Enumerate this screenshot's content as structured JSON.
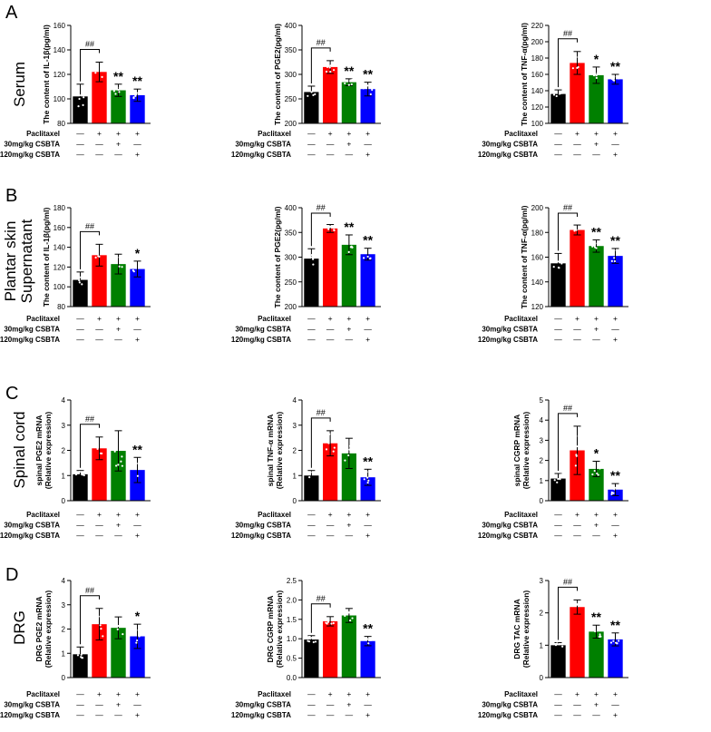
{
  "panels": [
    {
      "letter": "A",
      "row_label": [
        "Serum"
      ]
    },
    {
      "letter": "B",
      "row_label": [
        "Plantar skin",
        "Supernatant"
      ]
    },
    {
      "letter": "C",
      "row_label": [
        "Spinal cord"
      ]
    },
    {
      "letter": "D",
      "row_label": [
        "DRG"
      ]
    }
  ],
  "colors": {
    "control": "#000000",
    "paclitaxel": "#ff0000",
    "low_dose": "#008000",
    "high_dose": "#0000ff"
  },
  "treatment_rows": {
    "row1": "Paclitaxel",
    "row2": "30mg/kg CSBTA",
    "row3": "120mg/kg CSBTA",
    "grid": [
      [
        "—",
        "+",
        "+",
        "+"
      ],
      [
        "—",
        "—",
        "+",
        "—"
      ],
      [
        "—",
        "—",
        "—",
        "+"
      ]
    ]
  },
  "chart_data": [
    {
      "type": "bar",
      "panel": "A",
      "ylabel": [
        "The content of IL-1β(pg/ml)"
      ],
      "ylim": [
        80,
        160
      ],
      "ticks": [
        "80",
        "100",
        "120",
        "140",
        "160"
      ],
      "categories": [
        "Control",
        "Paclitaxel",
        "Paclitaxel + 30mg/kg CSBTA",
        "Paclitaxel + 120mg/kg CSBTA"
      ],
      "values": [
        102,
        122,
        107,
        103
      ],
      "errors": [
        10,
        8,
        5,
        5
      ],
      "hash_label": "##",
      "marks": [
        "",
        "",
        "**",
        "**"
      ]
    },
    {
      "type": "bar",
      "panel": "A",
      "ylabel": [
        "The content of PGE2(pg/ml)"
      ],
      "ylim": [
        200,
        400
      ],
      "ticks": [
        "200",
        "250",
        "300",
        "350",
        "400"
      ],
      "categories": [
        "Control",
        "Paclitaxel",
        "Paclitaxel + 30mg/kg CSBTA",
        "Paclitaxel + 120mg/kg CSBTA"
      ],
      "values": [
        264,
        315,
        284,
        270
      ],
      "errors": [
        12,
        13,
        7,
        14
      ],
      "hash_label": "##",
      "marks": [
        "",
        "",
        "**",
        "**"
      ]
    },
    {
      "type": "bar",
      "panel": "A",
      "ylabel": [
        "The content of TNF-α(pg/ml)"
      ],
      "ylim": [
        100,
        220
      ],
      "ticks": [
        "100",
        "120",
        "140",
        "160",
        "180",
        "200",
        "220"
      ],
      "categories": [
        "Control",
        "Paclitaxel",
        "Paclitaxel + 30mg/kg CSBTA",
        "Paclitaxel + 120mg/kg CSBTA"
      ],
      "values": [
        136,
        174,
        159,
        154
      ],
      "errors": [
        5,
        14,
        10,
        6
      ],
      "hash_label": "##",
      "marks": [
        "",
        "",
        "*",
        "**"
      ]
    },
    {
      "type": "bar",
      "panel": "B",
      "ylabel": [
        "The content of IL-1β(pg/ml)"
      ],
      "ylim": [
        80,
        180
      ],
      "ticks": [
        "80",
        "100",
        "120",
        "140",
        "160",
        "180"
      ],
      "categories": [
        "Control",
        "Paclitaxel",
        "Paclitaxel + 30mg/kg CSBTA",
        "Paclitaxel + 120mg/kg CSBTA"
      ],
      "values": [
        107,
        132,
        123,
        118
      ],
      "errors": [
        8,
        11,
        10,
        8
      ],
      "hash_label": "##",
      "marks": [
        "",
        "",
        "",
        "*"
      ]
    },
    {
      "type": "bar",
      "panel": "B",
      "ylabel": [
        "The content of PGE2(pg/ml)"
      ],
      "ylim": [
        200,
        400
      ],
      "ticks": [
        "200",
        "250",
        "300",
        "350",
        "400"
      ],
      "categories": [
        "Control",
        "Paclitaxel",
        "Paclitaxel + 30mg/kg CSBTA",
        "Paclitaxel + 120mg/kg CSBTA"
      ],
      "values": [
        297,
        358,
        325,
        306
      ],
      "errors": [
        20,
        8,
        20,
        12
      ],
      "hash_label": "##",
      "marks": [
        "",
        "",
        "**",
        "**"
      ]
    },
    {
      "type": "bar",
      "panel": "B",
      "ylabel": [
        "The content of TNF-α(pg/ml)"
      ],
      "ylim": [
        120,
        200
      ],
      "ticks": [
        "120",
        "140",
        "160",
        "180",
        "200"
      ],
      "categories": [
        "Control",
        "Paclitaxel",
        "Paclitaxel + 30mg/kg CSBTA",
        "Paclitaxel + 120mg/kg CSBTA"
      ],
      "values": [
        155,
        182,
        169,
        161
      ],
      "errors": [
        8,
        4,
        5,
        6
      ],
      "hash_label": "##",
      "marks": [
        "",
        "",
        "**",
        "**"
      ]
    },
    {
      "type": "bar",
      "panel": "C",
      "ylabel": [
        "spinal PGE2 mRNA",
        "(Relative expression)"
      ],
      "ylim": [
        0,
        4
      ],
      "ticks": [
        "0",
        "1",
        "2",
        "3",
        "4"
      ],
      "categories": [
        "Control",
        "Paclitaxel",
        "Paclitaxel + 30mg/kg CSBTA",
        "Paclitaxel + 120mg/kg CSBTA"
      ],
      "values": [
        1.05,
        2.08,
        1.98,
        1.22
      ],
      "errors": [
        0.15,
        0.45,
        0.8,
        0.5
      ],
      "hash_label": "##",
      "marks": [
        "",
        "",
        "",
        "**"
      ]
    },
    {
      "type": "bar",
      "panel": "C",
      "ylabel": [
        "spinal TNF-α mRNA",
        "(Relative expression)"
      ],
      "ylim": [
        0,
        4
      ],
      "ticks": [
        "0",
        "1",
        "2",
        "3",
        "4"
      ],
      "categories": [
        "Control",
        "Paclitaxel",
        "Paclitaxel + 30mg/kg CSBTA",
        "Paclitaxel + 120mg/kg CSBTA"
      ],
      "values": [
        1.0,
        2.28,
        1.88,
        0.93
      ],
      "errors": [
        0.2,
        0.5,
        0.6,
        0.32
      ],
      "hash_label": "##",
      "marks": [
        "",
        "",
        "",
        "**"
      ]
    },
    {
      "type": "bar",
      "panel": "C",
      "ylabel": [
        "spinal CGRP mRNA",
        "(Relative expression)"
      ],
      "ylim": [
        0,
        5
      ],
      "ticks": [
        "0",
        "1",
        "2",
        "3",
        "4",
        "5"
      ],
      "categories": [
        "Control",
        "Paclitaxel",
        "Paclitaxel + 30mg/kg CSBTA",
        "Paclitaxel + 120mg/kg CSBTA"
      ],
      "values": [
        1.1,
        2.5,
        1.58,
        0.55
      ],
      "errors": [
        0.25,
        1.2,
        0.38,
        0.3
      ],
      "hash_label": "##",
      "marks": [
        "",
        "",
        "*",
        "**"
      ]
    },
    {
      "type": "bar",
      "panel": "D",
      "ylabel": [
        "DRG PGE2 mRNA",
        "(Relative expression)"
      ],
      "ylim": [
        0,
        4
      ],
      "ticks": [
        "0",
        "1",
        "2",
        "3",
        "4"
      ],
      "categories": [
        "Control",
        "Paclitaxel",
        "Paclitaxel + 30mg/kg CSBTA",
        "Paclitaxel + 120mg/kg CSBTA"
      ],
      "values": [
        0.96,
        2.2,
        2.05,
        1.7
      ],
      "errors": [
        0.3,
        0.65,
        0.45,
        0.5
      ],
      "hash_label": "##",
      "marks": [
        "",
        "",
        "",
        "*"
      ]
    },
    {
      "type": "bar",
      "panel": "D",
      "ylabel": [
        "DRG CGRP mRNA",
        "(Relative expression)"
      ],
      "ylim": [
        0,
        2.5
      ],
      "ticks": [
        "0.0",
        "0.5",
        "1.0",
        "1.5",
        "2.0",
        "2.5"
      ],
      "categories": [
        "Control",
        "Paclitaxel",
        "Paclitaxel + 30mg/kg CSBTA",
        "Paclitaxel + 120mg/kg CSBTA"
      ],
      "values": [
        0.98,
        1.45,
        1.6,
        0.94
      ],
      "errors": [
        0.1,
        0.12,
        0.18,
        0.12
      ],
      "hash_label": "##",
      "marks": [
        "",
        "",
        "",
        "**"
      ]
    },
    {
      "type": "bar",
      "panel": "D",
      "ylabel": [
        "DRG TAC mRNA",
        "(Relative expression)"
      ],
      "ylim": [
        0,
        3
      ],
      "ticks": [
        "0",
        "1",
        "2",
        "3"
      ],
      "categories": [
        "Control",
        "Paclitaxel",
        "Paclitaxel + 30mg/kg CSBTA",
        "Paclitaxel + 120mg/kg CSBTA"
      ],
      "values": [
        1.0,
        2.18,
        1.42,
        1.18
      ],
      "errors": [
        0.08,
        0.22,
        0.2,
        0.2
      ],
      "hash_label": "##",
      "marks": [
        "",
        "",
        "**",
        "**"
      ]
    }
  ]
}
